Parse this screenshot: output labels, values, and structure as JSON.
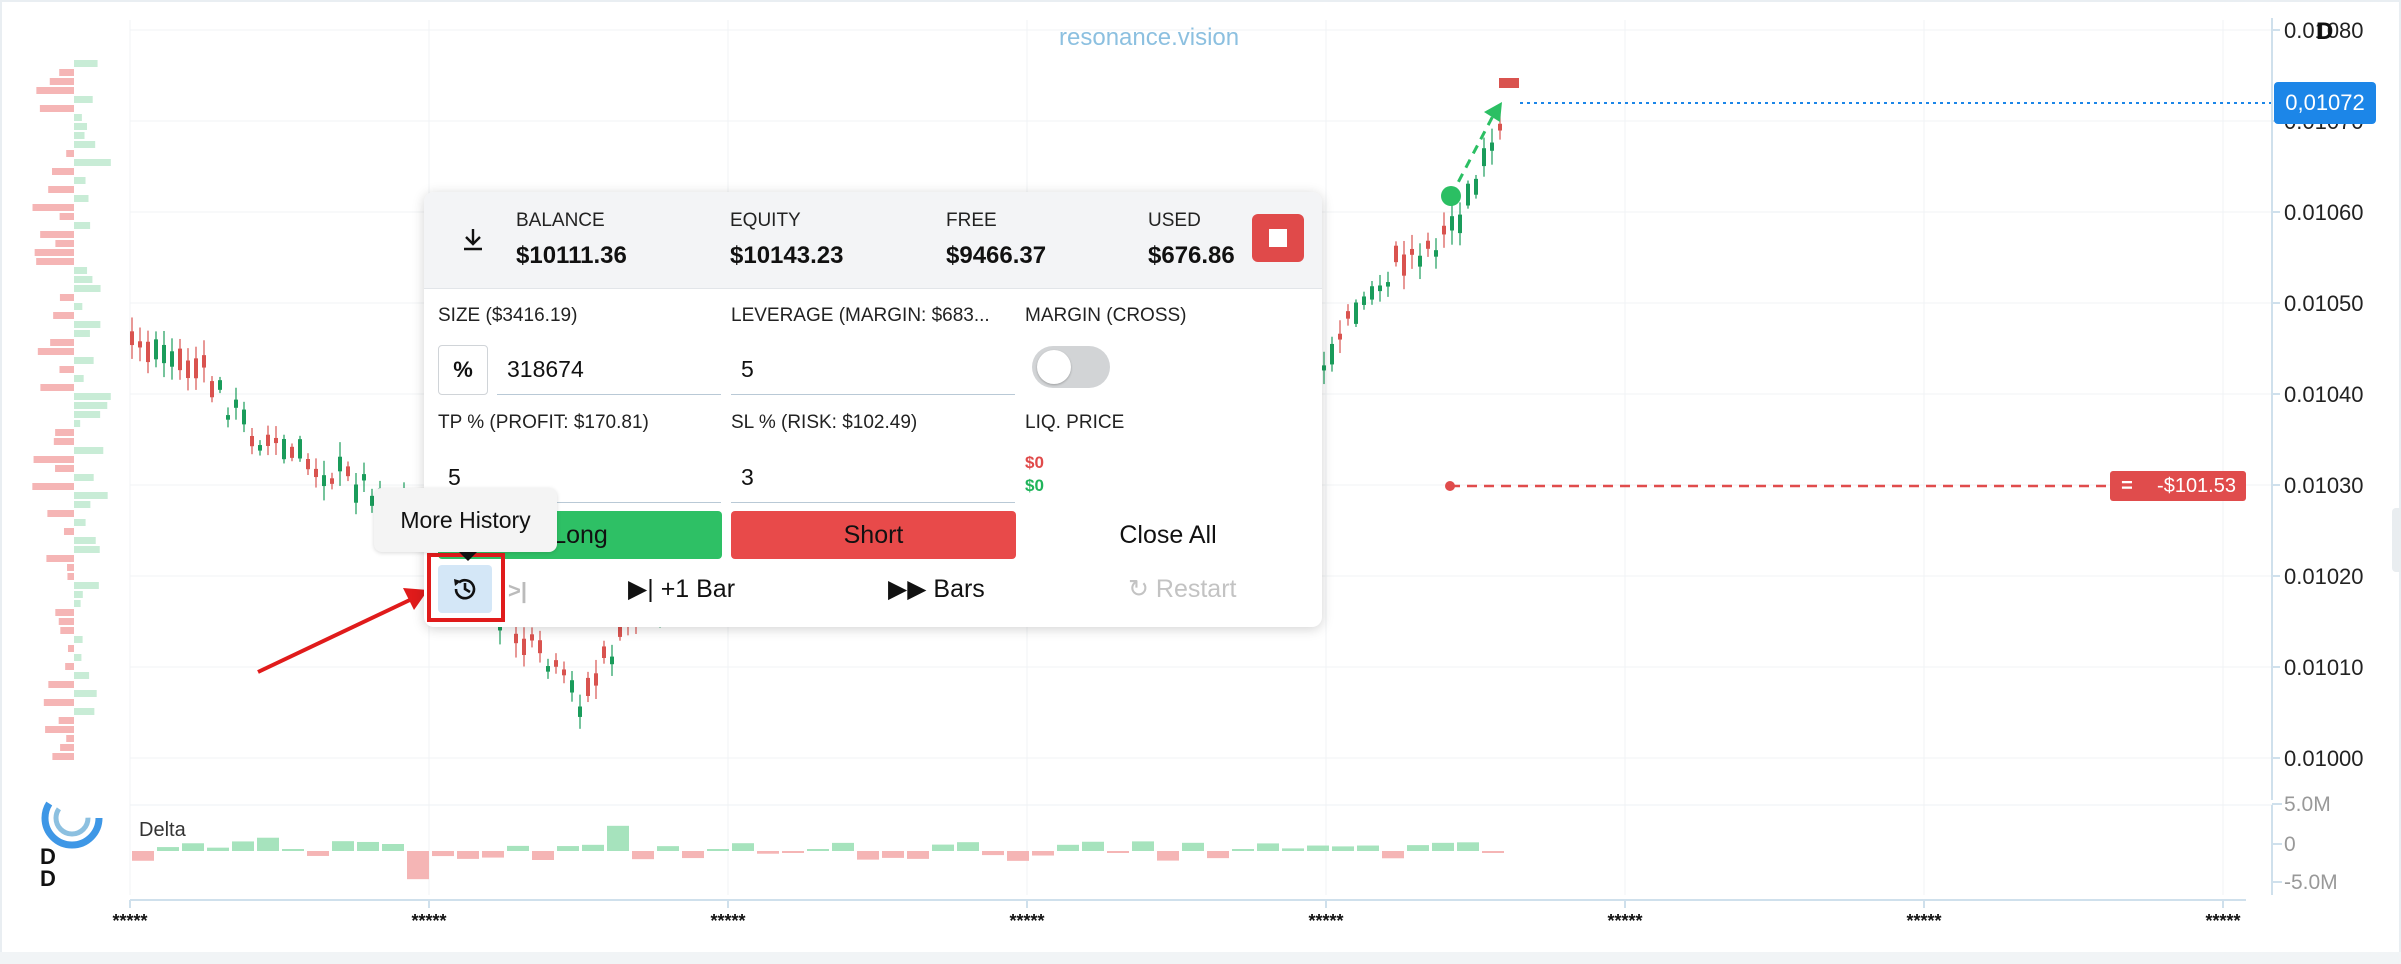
{
  "app": {
    "watermark": "resonance.vision",
    "timeframe_badge": "D"
  },
  "price_axis": {
    "labels": [
      "0.01080",
      "0.01070",
      "0.01060",
      "0.01050",
      "0.01040",
      "0.01030",
      "0.01020",
      "0.01010",
      "0.01000"
    ],
    "current_price": "0,01072",
    "position_pnl": "-$101.53",
    "pnl_icon": "drag-handle-icon"
  },
  "delta_panel": {
    "label": "Delta",
    "axis_labels": [
      "5.0M",
      "0",
      "-5.0M"
    ]
  },
  "time_axis": {
    "labels": [
      "*****",
      "*****",
      "*****",
      "*****",
      "*****",
      "*****",
      "*****",
      "*****"
    ]
  },
  "left_badges": [
    "D",
    "D"
  ],
  "account": {
    "balance_label": "BALANCE",
    "balance_value": "$10111.36",
    "equity_label": "EQUITY",
    "equity_value": "$10143.23",
    "free_label": "FREE",
    "free_value": "$9466.37",
    "used_label": "USED",
    "used_value": "$676.86"
  },
  "form": {
    "size_label": "SIZE ($3416.19)",
    "size_value": "318674",
    "pct_label": "%",
    "leverage_label": "LEVERAGE (MARGIN: $683...",
    "leverage_value": "5",
    "margin_label": "MARGIN (CROSS)",
    "margin_enabled": false,
    "tp_label": "TP % (PROFIT: $170.81)",
    "tp_value": "5",
    "sl_label": "SL % (RISK: $102.49)",
    "sl_value": "3",
    "liq_label": "LIQ. PRICE",
    "liq_short": "$0",
    "liq_long": "$0"
  },
  "actions": {
    "long": "Long",
    "short": "Short",
    "close_all": "Close All",
    "next_bar": "+1 Bar",
    "bars": "Bars",
    "restart": "Restart"
  },
  "tooltip": {
    "text": "More History"
  },
  "colors": {
    "up": "#1a9c5b",
    "down": "#d9534f",
    "accent": "#1c86e8",
    "long": "#2ec065",
    "short": "#e84a4a",
    "highlight": "#e01b1b"
  },
  "icons": [
    "download-icon",
    "stop-icon",
    "history-icon",
    "step-back-icon",
    "step-forward-icon",
    "fast-forward-icon",
    "restart-icon",
    "drag-handle-icon",
    "logo-icon"
  ]
}
